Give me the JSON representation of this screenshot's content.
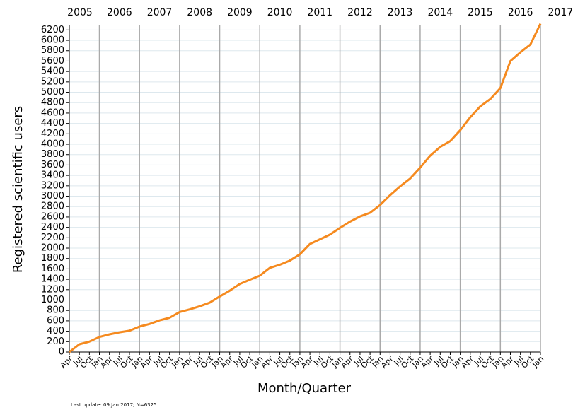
{
  "chart_data": {
    "type": "line",
    "y_label": "Registered scientific users",
    "x_label": "Month/Quarter",
    "footnote": "Last update: 09 Jan 2017; N=6325",
    "years": [
      "2005",
      "2006",
      "2007",
      "2008",
      "2009",
      "2010",
      "2011",
      "2012",
      "2013",
      "2014",
      "2015",
      "2016",
      "2017"
    ],
    "categories": [
      "Apr",
      "Jul",
      "Oct",
      "Jan",
      "Apr",
      "Jul",
      "Oct",
      "Jan",
      "Apr",
      "Jul",
      "Oct",
      "Jan",
      "Apr",
      "Jul",
      "Oct",
      "Jan",
      "Apr",
      "Jul",
      "Oct",
      "Jan",
      "Apr",
      "Jul",
      "Oct",
      "Jan",
      "Apr",
      "Jul",
      "Oct",
      "Jan",
      "Apr",
      "Jul",
      "Oct",
      "Jan",
      "Apr",
      "Jul",
      "Oct",
      "Jan",
      "Apr",
      "Jul",
      "Oct",
      "Jan",
      "Apr",
      "Jul",
      "Oct",
      "Jan",
      "Apr",
      "Jul",
      "Oct",
      "Jan"
    ],
    "series": [
      {
        "name": "Registered scientific users",
        "color": "#f58a1f",
        "values": [
          0,
          150,
          200,
          290,
          340,
          380,
          410,
          490,
          540,
          610,
          660,
          770,
          820,
          880,
          950,
          1070,
          1180,
          1310,
          1390,
          1470,
          1620,
          1680,
          1760,
          1880,
          2080,
          2170,
          2260,
          2390,
          2510,
          2610,
          2680,
          2830,
          3020,
          3190,
          3340,
          3550,
          3780,
          3950,
          4060,
          4270,
          4520,
          4730,
          4870,
          5080,
          5600,
          5770,
          5920,
          6320
        ]
      }
    ],
    "ylim": [
      0,
      6300
    ],
    "yticks": [
      0,
      200,
      400,
      600,
      800,
      1000,
      1200,
      1400,
      1600,
      1800,
      2000,
      2200,
      2400,
      2600,
      2800,
      3000,
      3200,
      3400,
      3600,
      3800,
      4000,
      4200,
      4400,
      4600,
      4800,
      5000,
      5200,
      5400,
      5600,
      5800,
      6000,
      6200
    ],
    "grid": true
  }
}
